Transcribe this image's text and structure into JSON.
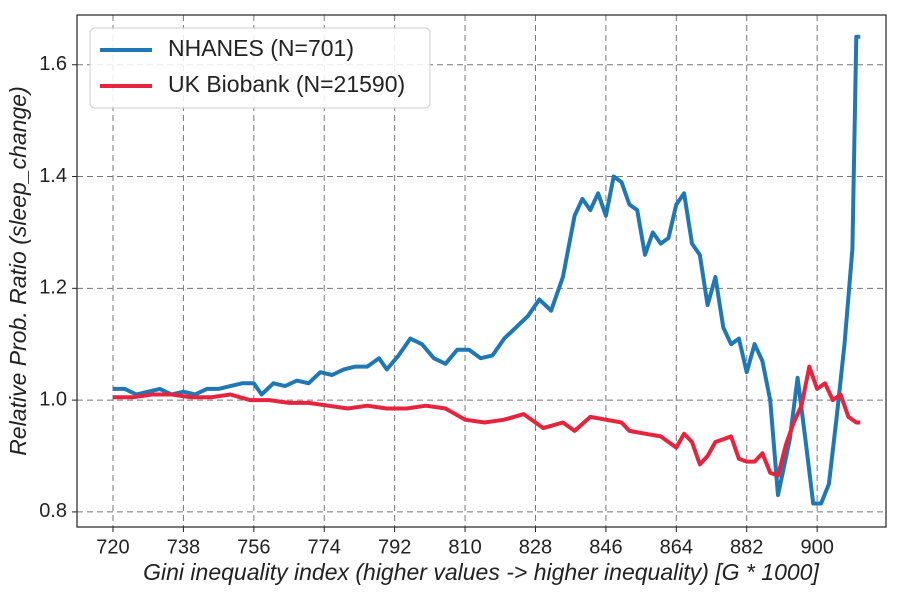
{
  "chart_data": {
    "type": "line",
    "xlabel": "Gini inequality index (higher values -> higher inequality) [G * 1000]",
    "ylabel": "Relative Prob. Ratio (sleep_change)",
    "xlim": [
      710.8,
      917.6
    ],
    "ylim": [
      0.773,
      1.689
    ],
    "xticks": [
      720,
      738,
      756,
      774,
      792,
      810,
      828,
      846,
      864,
      882,
      900
    ],
    "yticks": [
      0.8,
      {
        "value": 1.0,
        "label": "1.0"
      },
      1.2,
      1.4,
      1.6
    ],
    "grid": true,
    "legend": "upper left",
    "series": [
      {
        "name": "NHANES (N=701)",
        "color": "#1f77b4",
        "x": [
          720,
          723,
          726,
          729,
          732,
          735,
          738,
          741,
          744,
          747,
          750,
          753,
          756,
          758,
          761,
          764,
          767,
          770,
          773,
          776,
          779,
          782,
          785,
          788,
          790,
          793,
          796,
          799,
          802,
          805,
          808,
          811,
          814,
          817,
          820,
          823,
          826,
          829,
          832,
          835,
          838,
          840,
          842,
          844,
          846,
          848,
          850,
          852,
          854,
          856,
          858,
          860,
          862,
          864,
          866,
          868,
          870,
          872,
          874,
          876,
          878,
          880,
          882,
          884,
          886,
          888,
          890,
          893,
          895,
          897,
          899,
          901,
          903,
          905,
          907,
          909,
          910,
          911
        ],
        "values": [
          1.02,
          1.02,
          1.01,
          1.015,
          1.02,
          1.01,
          1.015,
          1.01,
          1.02,
          1.02,
          1.025,
          1.03,
          1.03,
          1.01,
          1.03,
          1.025,
          1.035,
          1.03,
          1.05,
          1.045,
          1.055,
          1.06,
          1.06,
          1.075,
          1.055,
          1.08,
          1.11,
          1.1,
          1.075,
          1.065,
          1.09,
          1.09,
          1.075,
          1.08,
          1.11,
          1.13,
          1.15,
          1.18,
          1.16,
          1.22,
          1.33,
          1.36,
          1.34,
          1.37,
          1.33,
          1.4,
          1.39,
          1.35,
          1.34,
          1.26,
          1.3,
          1.28,
          1.29,
          1.35,
          1.37,
          1.28,
          1.26,
          1.17,
          1.22,
          1.13,
          1.1,
          1.11,
          1.05,
          1.1,
          1.07,
          1.0,
          0.83,
          0.93,
          1.04,
          0.93,
          0.815,
          0.815,
          0.85,
          0.97,
          1.1,
          1.27,
          1.65,
          1.65
        ]
      },
      {
        "name": "UK Biobank (N=21590)",
        "color": "#e8233e",
        "x": [
          720,
          725,
          730,
          735,
          740,
          745,
          750,
          755,
          760,
          765,
          770,
          775,
          780,
          785,
          790,
          795,
          800,
          805,
          810,
          815,
          820,
          825,
          830,
          835,
          838,
          842,
          846,
          850,
          852,
          856,
          860,
          864,
          866,
          868,
          870,
          872,
          874,
          876,
          878,
          880,
          882,
          884,
          886,
          888,
          890,
          892,
          894,
          896,
          898,
          900,
          902,
          904,
          906,
          908,
          910,
          911
        ],
        "values": [
          1.005,
          1.005,
          1.01,
          1.01,
          1.005,
          1.005,
          1.01,
          1.0,
          1.0,
          0.995,
          0.995,
          0.99,
          0.985,
          0.99,
          0.985,
          0.985,
          0.99,
          0.985,
          0.965,
          0.96,
          0.965,
          0.975,
          0.95,
          0.96,
          0.945,
          0.97,
          0.965,
          0.96,
          0.945,
          0.94,
          0.935,
          0.915,
          0.94,
          0.925,
          0.885,
          0.9,
          0.925,
          0.93,
          0.935,
          0.895,
          0.89,
          0.89,
          0.905,
          0.87,
          0.865,
          0.92,
          0.96,
          0.99,
          1.06,
          1.02,
          1.03,
          1.0,
          1.01,
          0.97,
          0.96,
          0.96
        ]
      }
    ]
  }
}
